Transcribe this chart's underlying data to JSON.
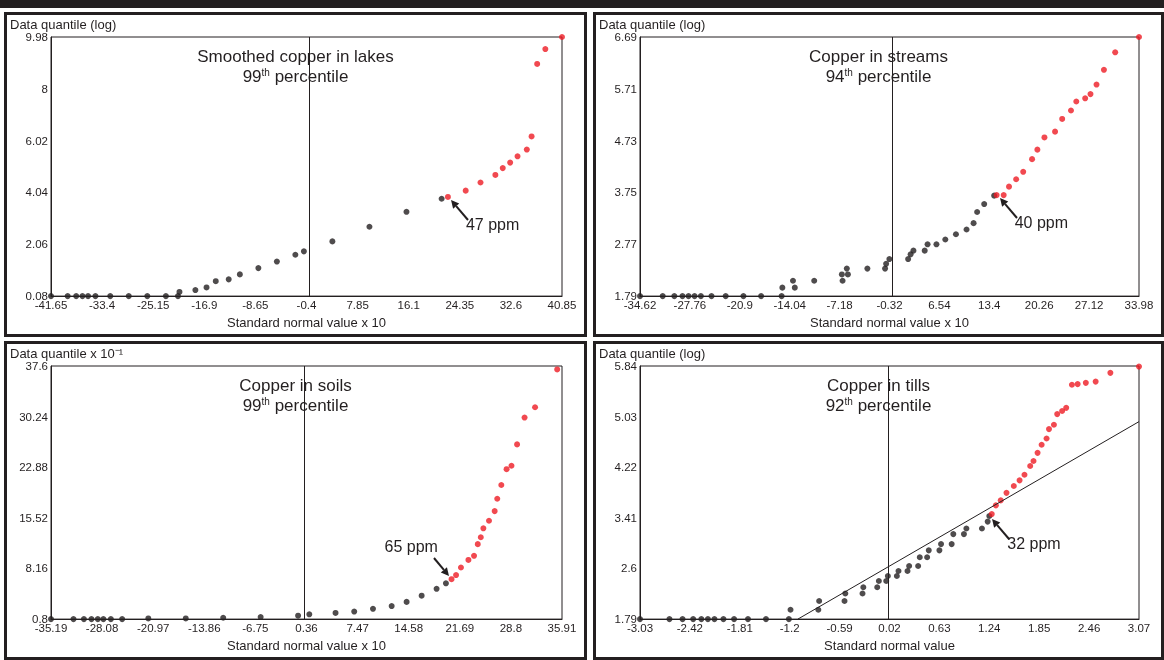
{
  "chart_data": [
    {
      "type": "scatter",
      "title": "Smoothed copper in lakes",
      "subtitle": "99$^{th}$ percentile",
      "xlabel": "Standard normal value x 10",
      "ylabel": "Data quantile (log)",
      "xlim": [
        -41.65,
        40.85
      ],
      "xticks": [
        -41.65,
        -33.4,
        -25.15,
        -16.9,
        -8.65,
        -0.4,
        7.85,
        16.1,
        24.35,
        32.6,
        40.85
      ],
      "ylim": [
        0.08,
        9.98
      ],
      "yticks": [
        0.08,
        2.06,
        4.04,
        6.02,
        8,
        9.98
      ],
      "marker": "circle",
      "series": [
        {
          "color": "#231f20",
          "x": [
            -41.65,
            -38.96,
            -37.58,
            -36.57,
            -35.67,
            -34.48,
            -32.08,
            -29.1,
            -26.1,
            -23.1,
            -21.15,
            -20.91,
            -18.34,
            -16.54,
            -15.05,
            -12.96,
            -11.16,
            -8.17,
            -5.18,
            -2.2,
            -0.82,
            3.78,
            9.76,
            15.74,
            21.42
          ],
          "values": [
            0.08,
            0.08,
            0.08,
            0.08,
            0.08,
            0.08,
            0.08,
            0.08,
            0.08,
            0.08,
            0.08,
            0.24,
            0.31,
            0.41,
            0.65,
            0.72,
            0.91,
            1.15,
            1.4,
            1.66,
            1.79,
            2.17,
            2.73,
            3.3,
            3.8
          ]
        },
        {
          "color": "#ed1c24",
          "x": [
            22.43,
            25.3,
            27.69,
            30.09,
            31.28,
            32.48,
            33.67,
            35.17,
            35.94,
            36.84,
            38.16,
            40.85
          ],
          "values": [
            3.87,
            4.11,
            4.42,
            4.71,
            4.97,
            5.18,
            5.42,
            5.68,
            6.18,
            8.95,
            9.52,
            9.98
          ]
        }
      ],
      "ref_lines": [
        {
          "axis": "x",
          "value": 0,
          "color": "#231f20"
        }
      ],
      "annotations": [
        {
          "text": "47 ppm",
          "x": 22.43,
          "y": 3.87
        }
      ]
    },
    {
      "type": "scatter",
      "title": "Copper in streams",
      "subtitle": "94$^{th}$ percentile",
      "xlabel": "Standard normal value x 10",
      "ylabel": "Data quantile (log)",
      "xlim": [
        -34.62,
        33.98
      ],
      "xticks": [
        -34.62,
        -27.76,
        -20.9,
        -14.04,
        -7.18,
        -0.32,
        6.54,
        13.4,
        20.26,
        27.12,
        33.98
      ],
      "ylim": [
        1.79,
        6.69
      ],
      "yticks": [
        1.79,
        2.77,
        3.75,
        4.73,
        5.71,
        6.69
      ],
      "marker": "circle",
      "series": [
        {
          "color": "#231f20",
          "x": [
            -34.62,
            -31.5,
            -29.9,
            -28.78,
            -27.95,
            -27.12,
            -26.25,
            -24.79,
            -22.84,
            -20.4,
            -17.97,
            -15.15,
            -15.05,
            -13.34,
            -13.59,
            -10.67,
            -6.77,
            -6.87,
            -6.04,
            -6.19,
            -3.36,
            -0.93,
            -0.78,
            -0.34,
            2.24,
            2.58,
            2.97,
            4.52,
            4.91,
            6.13,
            7.35,
            8.81,
            10.27,
            11.24,
            11.73,
            12.7,
            14.07
          ],
          "values": [
            1.79,
            1.79,
            1.79,
            1.79,
            1.79,
            1.79,
            1.79,
            1.79,
            1.79,
            1.79,
            1.79,
            1.79,
            1.95,
            1.95,
            2.08,
            2.08,
            2.08,
            2.2,
            2.2,
            2.31,
            2.31,
            2.31,
            2.4,
            2.49,
            2.49,
            2.58,
            2.65,
            2.65,
            2.77,
            2.77,
            2.86,
            2.96,
            3.05,
            3.17,
            3.38,
            3.53,
            3.69
          ]
        },
        {
          "color": "#ed1c24",
          "x": [
            14.41,
            15.38,
            16.11,
            17.09,
            18.06,
            19.28,
            20.01,
            20.98,
            22.44,
            23.42,
            24.63,
            25.36,
            26.58,
            27.31,
            28.14,
            29.16,
            30.71,
            33.98
          ],
          "values": [
            3.7,
            3.7,
            3.86,
            4.0,
            4.14,
            4.38,
            4.56,
            4.79,
            4.9,
            5.14,
            5.3,
            5.47,
            5.53,
            5.61,
            5.79,
            6.07,
            6.4,
            6.69
          ]
        }
      ],
      "ref_lines": [
        {
          "axis": "x",
          "value": 0,
          "color": "#231f20"
        }
      ],
      "annotations": [
        {
          "text": "40 ppm",
          "x": 14.41,
          "y": 3.7
        }
      ]
    },
    {
      "type": "scatter",
      "title": "Copper in soils",
      "subtitle": "99$^{th}$ percentile",
      "xlabel": "Standard normal value x 10",
      "ylabel": "Data quantile x 10⁻¹",
      "xlim": [
        -35.19,
        35.91
      ],
      "xticks": [
        -35.19,
        -28.08,
        -20.97,
        -13.86,
        -6.75,
        0.36,
        7.47,
        14.58,
        21.69,
        28.8,
        35.91
      ],
      "ylim": [
        0.8,
        37.6
      ],
      "yticks": [
        0.8,
        8.16,
        15.52,
        22.88,
        30.24,
        37.6
      ],
      "marker": "circle",
      "series": [
        {
          "color": "#231f20",
          "x": [
            -35.19,
            -32.06,
            -30.61,
            -29.56,
            -28.68,
            -27.9,
            -26.86,
            -25.29,
            -21.65,
            -16.44,
            -11.23,
            -6.02,
            -0.81,
            0.75,
            4.4,
            7.0,
            9.61,
            12.21,
            14.29,
            16.38,
            18.46,
            19.76
          ],
          "values": [
            0.8,
            0.8,
            0.8,
            0.8,
            0.8,
            0.8,
            0.8,
            0.8,
            0.9,
            0.9,
            1.0,
            1.1,
            1.3,
            1.5,
            1.7,
            1.9,
            2.3,
            2.7,
            3.3,
            4.2,
            5.2,
            6.0
          ]
        },
        {
          "color": "#ed1c24",
          "x": [
            20.54,
            21.17,
            21.85,
            22.89,
            23.67,
            24.19,
            24.61,
            24.97,
            25.75,
            26.54,
            26.9,
            27.47,
            28.2,
            28.88,
            29.66,
            30.7,
            32.16,
            35.24
          ],
          "values": [
            6.6,
            7.2,
            8.3,
            9.4,
            10.0,
            11.7,
            12.7,
            14.0,
            15.1,
            16.5,
            18.3,
            20.3,
            22.6,
            23.1,
            26.2,
            30.1,
            31.6,
            37.1
          ]
        }
      ],
      "ref_lines": [
        {
          "axis": "x",
          "value": 0,
          "color": "#231f20"
        }
      ],
      "annotations": [
        {
          "text": "65 ppm",
          "x": 20.54,
          "y": 6.6
        }
      ]
    },
    {
      "type": "scatter",
      "title": "Copper in tills",
      "subtitle": "92$^{th}$ percentile",
      "xlabel": "Standard normal value",
      "ylabel": "Data quantile (log)",
      "xlim": [
        -3.03,
        3.07
      ],
      "xticks": [
        -3.03,
        -2.42,
        -1.81,
        -1.2,
        -0.59,
        0.02,
        0.63,
        1.24,
        1.85,
        2.46,
        3.07
      ],
      "ylim": [
        1.79,
        5.84
      ],
      "yticks": [
        1.79,
        2.6,
        3.41,
        4.22,
        5.03,
        5.84
      ],
      "marker": "circle",
      "series": [
        {
          "color": "#231f20",
          "x": [
            -3.03,
            -2.67,
            -2.51,
            -2.38,
            -2.28,
            -2.2,
            -2.12,
            -2.01,
            -1.88,
            -1.71,
            -1.49,
            -1.21,
            -1.19,
            -0.85,
            -0.84,
            -0.53,
            -0.52,
            -0.31,
            -0.3,
            -0.13,
            -0.11,
            -0.02,
            0.0,
            0.11,
            0.13,
            0.24,
            0.26,
            0.37,
            0.39,
            0.48,
            0.5,
            0.63,
            0.65,
            0.78,
            0.8,
            0.93,
            0.96,
            1.15,
            1.22,
            1.24
          ],
          "values": [
            1.79,
            1.79,
            1.79,
            1.79,
            1.79,
            1.79,
            1.79,
            1.79,
            1.79,
            1.79,
            1.79,
            1.79,
            1.94,
            1.94,
            2.08,
            2.08,
            2.2,
            2.2,
            2.3,
            2.3,
            2.4,
            2.4,
            2.48,
            2.48,
            2.56,
            2.56,
            2.64,
            2.64,
            2.78,
            2.78,
            2.89,
            2.89,
            2.99,
            2.99,
            3.15,
            3.15,
            3.24,
            3.24,
            3.35,
            3.44
          ]
        },
        {
          "color": "#ed1c24",
          "x": [
            1.27,
            1.32,
            1.38,
            1.45,
            1.54,
            1.61,
            1.67,
            1.74,
            1.78,
            1.83,
            1.88,
            1.94,
            1.97,
            2.03,
            2.07,
            2.13,
            2.18,
            2.25,
            2.32,
            2.42,
            2.54,
            2.72,
            3.07
          ],
          "values": [
            3.47,
            3.61,
            3.69,
            3.81,
            3.92,
            4.01,
            4.1,
            4.24,
            4.32,
            4.45,
            4.58,
            4.68,
            4.83,
            4.9,
            5.07,
            5.12,
            5.17,
            5.54,
            5.55,
            5.57,
            5.59,
            5.73,
            5.83
          ]
        },
        {
          "type": "line",
          "color": "#231f20",
          "marker": "none",
          "x": [
            -1.1,
            3.07
          ],
          "values": [
            1.79,
            4.95
          ]
        }
      ],
      "ref_lines": [
        {
          "axis": "x",
          "value": 0,
          "color": "#231f20"
        }
      ],
      "annotations": [
        {
          "text": "32 ppm",
          "x": 1.24,
          "y": 3.44
        }
      ]
    }
  ]
}
